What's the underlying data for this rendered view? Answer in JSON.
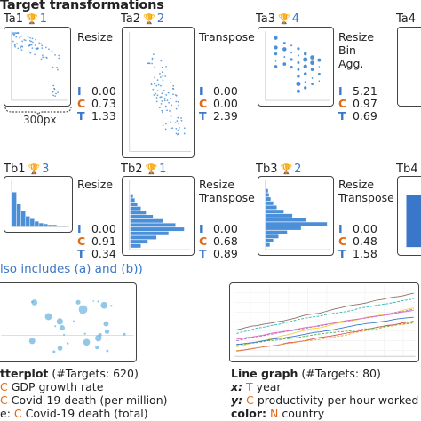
{
  "header": {
    "title": "Target transformations"
  },
  "cards": [
    {
      "id": "Ta1",
      "rank": "1",
      "transforms": [
        "Resize"
      ],
      "metrics": {
        "I": "0.00",
        "C": "0.73",
        "T": "1.33"
      },
      "scale_note": "300px"
    },
    {
      "id": "Ta2",
      "rank": "2",
      "transforms": [
        "Transpose"
      ],
      "metrics": {
        "I": "0.00",
        "C": "0.00",
        "T": "2.39"
      }
    },
    {
      "id": "Ta3",
      "rank": "4",
      "transforms": [
        "Resize",
        "Bin",
        "Agg."
      ],
      "metrics": {
        "I": "5.21",
        "C": "0.97",
        "T": "0.69"
      }
    },
    {
      "id": "Ta4"
    },
    {
      "id": "Tb1",
      "rank": "3",
      "transforms": [
        "Resize"
      ],
      "metrics": {
        "I": "0.00",
        "C": "0.91",
        "T": "0.34"
      }
    },
    {
      "id": "Tb2",
      "rank": "1",
      "transforms": [
        "Resize",
        "Transpose"
      ],
      "metrics": {
        "I": "0.00",
        "C": "0.68",
        "T": "0.89"
      }
    },
    {
      "id": "Tb3",
      "rank": "2",
      "transforms": [
        "Resize",
        "Transpose"
      ],
      "metrics": {
        "I": "0.00",
        "C": "0.48",
        "T": "1.58"
      }
    },
    {
      "id": "Tb4"
    }
  ],
  "metric_keys": {
    "I": "I",
    "C": "C",
    "T": "T"
  },
  "section": {
    "text": "lso includes (a) and (b))"
  },
  "scatter_caption": {
    "title": "tterplot",
    "targets": " (#Targets: 620)",
    "line1_letter": "C",
    "line1_text": "GDP growth rate",
    "line2_letter": "C",
    "line2_text": "Covid-19 death (per million)",
    "line3_prefix": "e:",
    "line3_letter": "C",
    "line3_text": "Covid-19 death (total)"
  },
  "line_caption": {
    "title": "Line graph",
    "targets": " (#Targets: 80)",
    "x_key": "x:",
    "x_letter": "T",
    "x_text": "year",
    "y_key": "y:",
    "y_letter": "C",
    "y_text": "productivity  per hour worked",
    "color_key": "color:",
    "color_letter": "N",
    "color_text": "country"
  },
  "colors": {
    "accent": "#3a76c9",
    "orange": "#e06a16",
    "trophy": "#d4a017",
    "bar": "#3a76c9"
  },
  "icons": {
    "rank": "trophy-icon"
  }
}
